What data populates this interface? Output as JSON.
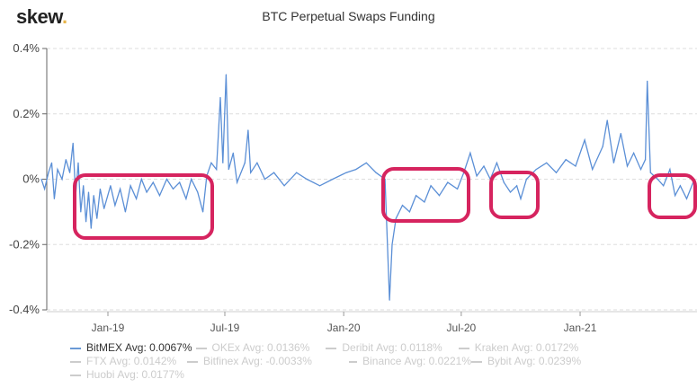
{
  "logo": {
    "text": "skew",
    "dot": "."
  },
  "chart_data": {
    "type": "line",
    "title": "BTC Perpetual Swaps Funding",
    "ylim": [
      -0.4,
      0.4
    ],
    "yticks": [
      "0.4%",
      "0.2%",
      "0%",
      "-0.2%",
      "-0.4%"
    ],
    "ytick_values": [
      0.4,
      0.2,
      0,
      -0.2,
      -0.4
    ],
    "xticks": [
      "Jan-19",
      "Jul-19",
      "Jan-20",
      "Jul-20",
      "Jan-21"
    ],
    "xtick_dates": [
      "2019-01-01",
      "2019-07-01",
      "2020-01-01",
      "2020-07-01",
      "2021-01-01"
    ],
    "grid": "horizontal dashed",
    "legend_position": "bottom",
    "series_color": "#5b8fd6",
    "annotation_color": "#d6245f",
    "series": [
      {
        "name": "BitMEX",
        "avg": "Avg: 0.0067%",
        "visible": true,
        "points": [
          [
            "2018-09-20",
            0.0
          ],
          [
            "2018-09-25",
            -0.03
          ],
          [
            "2018-10-01",
            0.02
          ],
          [
            "2018-10-06",
            0.05
          ],
          [
            "2018-10-10",
            -0.06
          ],
          [
            "2018-10-15",
            0.03
          ],
          [
            "2018-10-22",
            0.0
          ],
          [
            "2018-10-28",
            0.06
          ],
          [
            "2018-11-03",
            0.02
          ],
          [
            "2018-11-08",
            0.11
          ],
          [
            "2018-11-12",
            -0.05
          ],
          [
            "2018-11-16",
            0.05
          ],
          [
            "2018-11-20",
            -0.1
          ],
          [
            "2018-11-24",
            -0.02
          ],
          [
            "2018-11-28",
            -0.13
          ],
          [
            "2018-12-02",
            -0.04
          ],
          [
            "2018-12-06",
            -0.15
          ],
          [
            "2018-12-10",
            -0.05
          ],
          [
            "2018-12-15",
            -0.12
          ],
          [
            "2018-12-20",
            -0.03
          ],
          [
            "2018-12-26",
            -0.09
          ],
          [
            "2019-01-05",
            -0.02
          ],
          [
            "2019-01-12",
            -0.08
          ],
          [
            "2019-01-20",
            -0.03
          ],
          [
            "2019-01-28",
            -0.1
          ],
          [
            "2019-02-05",
            -0.02
          ],
          [
            "2019-02-14",
            -0.06
          ],
          [
            "2019-02-22",
            0.0
          ],
          [
            "2019-03-02",
            -0.04
          ],
          [
            "2019-03-12",
            -0.01
          ],
          [
            "2019-03-22",
            -0.05
          ],
          [
            "2019-04-02",
            0.0
          ],
          [
            "2019-04-12",
            -0.03
          ],
          [
            "2019-04-22",
            -0.01
          ],
          [
            "2019-05-02",
            -0.06
          ],
          [
            "2019-05-10",
            0.0
          ],
          [
            "2019-05-20",
            -0.04
          ],
          [
            "2019-05-28",
            -0.1
          ],
          [
            "2019-06-03",
            0.01
          ],
          [
            "2019-06-10",
            0.05
          ],
          [
            "2019-06-18",
            0.03
          ],
          [
            "2019-06-24",
            0.25
          ],
          [
            "2019-06-28",
            0.05
          ],
          [
            "2019-07-03",
            0.32
          ],
          [
            "2019-07-07",
            0.03
          ],
          [
            "2019-07-14",
            0.08
          ],
          [
            "2019-07-20",
            -0.01
          ],
          [
            "2019-08-01",
            0.05
          ],
          [
            "2019-08-06",
            0.15
          ],
          [
            "2019-08-10",
            0.02
          ],
          [
            "2019-08-20",
            0.05
          ],
          [
            "2019-09-01",
            0.0
          ],
          [
            "2019-09-15",
            0.02
          ],
          [
            "2019-10-01",
            -0.02
          ],
          [
            "2019-10-20",
            0.02
          ],
          [
            "2019-11-05",
            0.0
          ],
          [
            "2019-11-25",
            -0.02
          ],
          [
            "2019-12-15",
            0.0
          ],
          [
            "2020-01-05",
            0.02
          ],
          [
            "2020-01-20",
            0.03
          ],
          [
            "2020-02-05",
            0.05
          ],
          [
            "2020-02-20",
            0.02
          ],
          [
            "2020-03-05",
            0.0
          ],
          [
            "2020-03-12",
            -0.37
          ],
          [
            "2020-03-16",
            -0.2
          ],
          [
            "2020-03-22",
            -0.12
          ],
          [
            "2020-04-01",
            -0.08
          ],
          [
            "2020-04-12",
            -0.1
          ],
          [
            "2020-04-22",
            -0.05
          ],
          [
            "2020-05-05",
            -0.07
          ],
          [
            "2020-05-15",
            -0.02
          ],
          [
            "2020-05-28",
            -0.05
          ],
          [
            "2020-06-10",
            -0.01
          ],
          [
            "2020-06-25",
            -0.03
          ],
          [
            "2020-07-05",
            0.02
          ],
          [
            "2020-07-15",
            0.08
          ],
          [
            "2020-07-25",
            0.01
          ],
          [
            "2020-08-05",
            0.04
          ],
          [
            "2020-08-15",
            0.0
          ],
          [
            "2020-08-25",
            0.05
          ],
          [
            "2020-09-05",
            -0.01
          ],
          [
            "2020-09-15",
            -0.04
          ],
          [
            "2020-09-25",
            -0.02
          ],
          [
            "2020-10-01",
            -0.06
          ],
          [
            "2020-10-10",
            0.0
          ],
          [
            "2020-10-25",
            0.03
          ],
          [
            "2020-11-10",
            0.05
          ],
          [
            "2020-11-25",
            0.02
          ],
          [
            "2020-12-10",
            0.06
          ],
          [
            "2020-12-25",
            0.04
          ],
          [
            "2021-01-08",
            0.12
          ],
          [
            "2021-01-20",
            0.03
          ],
          [
            "2021-02-05",
            0.1
          ],
          [
            "2021-02-12",
            0.18
          ],
          [
            "2021-02-22",
            0.05
          ],
          [
            "2021-03-05",
            0.14
          ],
          [
            "2021-03-15",
            0.04
          ],
          [
            "2021-03-25",
            0.08
          ],
          [
            "2021-04-05",
            0.03
          ],
          [
            "2021-04-12",
            0.06
          ],
          [
            "2021-04-15",
            0.3
          ],
          [
            "2021-04-20",
            0.02
          ],
          [
            "2021-05-01",
            0.0
          ],
          [
            "2021-05-10",
            -0.02
          ],
          [
            "2021-05-20",
            0.03
          ],
          [
            "2021-05-28",
            -0.05
          ],
          [
            "2021-06-05",
            -0.02
          ],
          [
            "2021-06-15",
            -0.06
          ],
          [
            "2021-06-25",
            -0.01
          ],
          [
            "2021-07-05",
            -0.04
          ]
        ]
      },
      {
        "name": "OKEx",
        "avg": "Avg: 0.0136%",
        "visible": false
      },
      {
        "name": "Deribit",
        "avg": "Avg: 0.0118%",
        "visible": false
      },
      {
        "name": "Kraken",
        "avg": "Avg: 0.0172%",
        "visible": false
      },
      {
        "name": "FTX",
        "avg": "Avg: 0.0142%",
        "visible": false
      },
      {
        "name": "Bitfinex",
        "avg": "Avg: -0.0033%",
        "visible": false
      },
      {
        "name": "Binance",
        "avg": "Avg: 0.0221%",
        "visible": false
      },
      {
        "name": "Bybit",
        "avg": "Avg: 0.0239%",
        "visible": false
      },
      {
        "name": "Huobi",
        "avg": "Avg: 0.0177%",
        "visible": false
      }
    ]
  }
}
